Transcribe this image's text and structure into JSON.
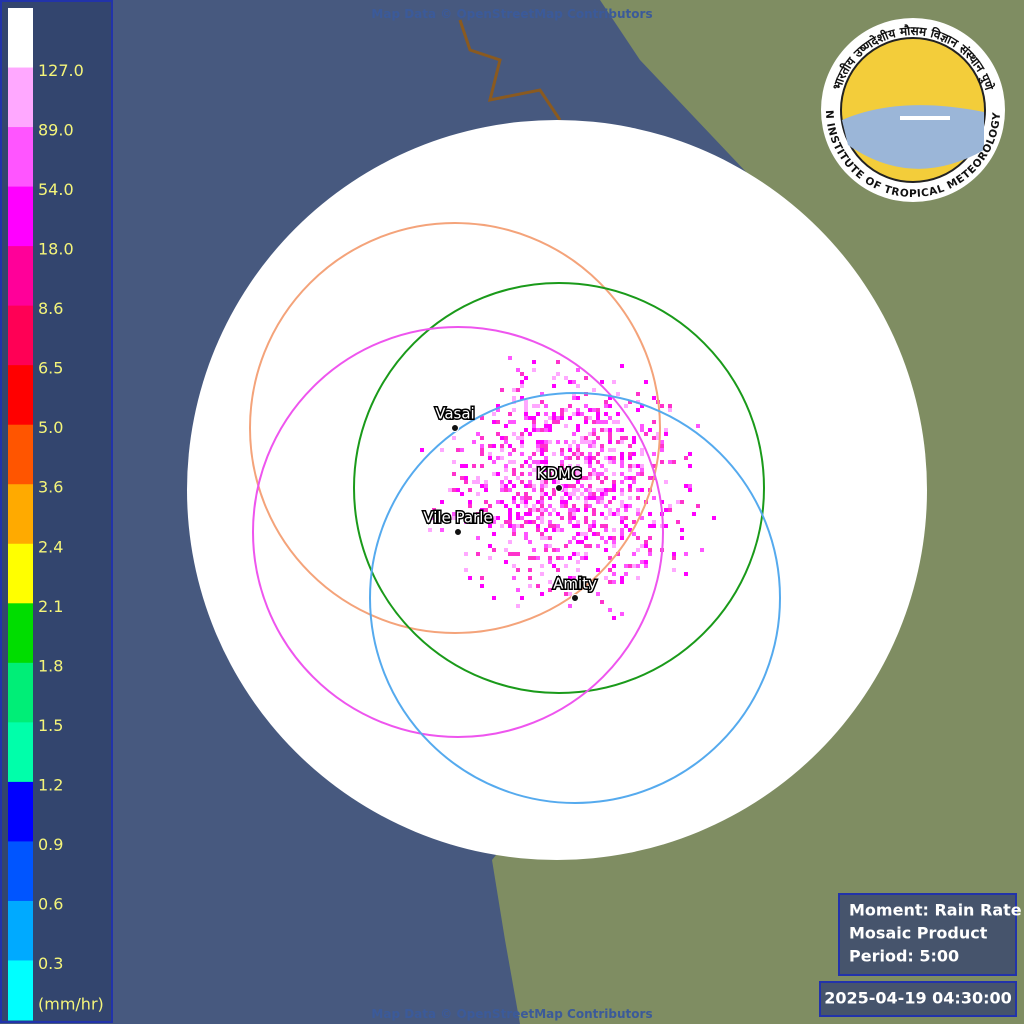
{
  "attribution_top": "Map Data © OpenStreetMap Contributors",
  "attribution_bottom": "Map Data © OpenStreetMap Contributors",
  "legend": {
    "colors": [
      "#ffffff",
      "#ffa8ff",
      "#ff55ff",
      "#ff00ff",
      "#ff0099",
      "#ff0055",
      "#ff0000",
      "#ff5500",
      "#ffaa00",
      "#ffff00",
      "#00dd00",
      "#00ee77",
      "#00ffaa",
      "#0000ff",
      "#0055ff",
      "#00aaff",
      "#00ffff"
    ],
    "labels": [
      "127.0",
      "89.0",
      "54.0",
      "18.0",
      "8.6",
      "6.5",
      "5.0",
      "3.6",
      "2.4",
      "2.1",
      "1.8",
      "1.5",
      "1.2",
      "0.9",
      "0.6",
      "0.3"
    ],
    "unit": "(mm/hr)"
  },
  "stations": [
    {
      "name": "Vasai",
      "color": "#f4a37a"
    },
    {
      "name": "KDMC",
      "color": "#1a9a1a"
    },
    {
      "name": "Vile Parle",
      "color": "#ee55ee"
    },
    {
      "name": "Amity",
      "color": "#55aaee"
    }
  ],
  "info": {
    "moment": "Moment: Rain Rate",
    "product": "Mosaic Product",
    "period": "Period: 5:00"
  },
  "timestamp": "2025-04-19 04:30:00",
  "logo": {
    "english": "INDIAN INSTITUTE OF TROPICAL METEOROLOGY PUNE",
    "hindi": "भारतीय उष्णदेशीय मौसम विज्ञान संस्थान पुणे"
  }
}
